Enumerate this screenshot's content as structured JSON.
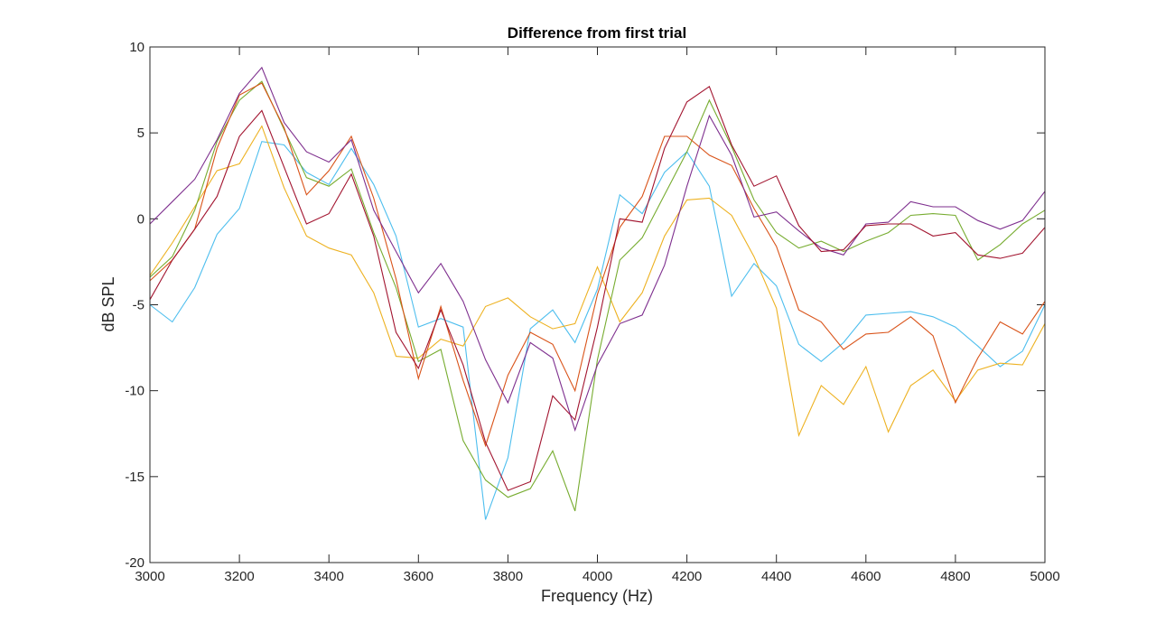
{
  "chart_data": {
    "type": "line",
    "title": "Difference from first trial",
    "xlabel": "Frequency (Hz)",
    "ylabel": "dB SPL",
    "xlim": [
      3000,
      5000
    ],
    "ylim": [
      -20,
      10
    ],
    "xticks": [
      3000,
      3200,
      3400,
      3600,
      3800,
      4000,
      4200,
      4400,
      4600,
      4800,
      5000
    ],
    "yticks": [
      -20,
      -15,
      -10,
      -5,
      0,
      5,
      10
    ],
    "grid": false,
    "legend": "none",
    "x": [
      3000,
      3050,
      3100,
      3150,
      3200,
      3250,
      3300,
      3350,
      3400,
      3450,
      3500,
      3550,
      3600,
      3650,
      3700,
      3750,
      3800,
      3850,
      3900,
      3950,
      4000,
      4050,
      4100,
      4150,
      4200,
      4250,
      4300,
      4350,
      4400,
      4450,
      4500,
      4550,
      4600,
      4650,
      4700,
      4750,
      4800,
      4850,
      4900,
      4950,
      5000
    ],
    "series": [
      {
        "color": "#4dbeee",
        "values": [
          -5.0,
          -6.0,
          -4.0,
          -0.9,
          0.6,
          4.5,
          4.3,
          2.7,
          2.0,
          4.1,
          2.0,
          -1.0,
          -6.3,
          -5.8,
          -6.3,
          -17.5,
          -13.9,
          -6.4,
          -5.3,
          -7.2,
          -4.1,
          1.4,
          0.3,
          2.7,
          3.9,
          1.9,
          -4.5,
          -2.6,
          -3.9,
          -7.3,
          -8.3,
          -7.2,
          -5.6,
          -5.5,
          -5.4,
          -5.7,
          -6.3,
          -7.4,
          -8.6,
          -7.7,
          -5.0
        ]
      },
      {
        "color": "#edb120",
        "values": [
          -3.3,
          -1.4,
          0.7,
          2.8,
          3.2,
          5.4,
          1.8,
          -1.0,
          -1.7,
          -2.1,
          -4.3,
          -8.0,
          -8.1,
          -7.0,
          -7.4,
          -5.1,
          -4.6,
          -5.7,
          -6.4,
          -6.1,
          -2.8,
          -6.0,
          -4.3,
          -1.0,
          1.1,
          1.2,
          0.2,
          -2.2,
          -5.2,
          -12.6,
          -9.7,
          -10.8,
          -8.6,
          -12.4,
          -9.7,
          -8.8,
          -10.6,
          -8.8,
          -8.4,
          -8.5,
          -6.1
        ]
      },
      {
        "color": "#77ac30",
        "values": [
          -3.4,
          -2.2,
          0.5,
          4.5,
          6.9,
          8.0,
          5.2,
          2.4,
          1.9,
          2.9,
          -0.8,
          -4.0,
          -8.3,
          -7.6,
          -12.9,
          -15.2,
          -16.2,
          -15.7,
          -13.5,
          -17.0,
          -8.2,
          -2.4,
          -1.1,
          1.4,
          3.9,
          6.9,
          4.2,
          1.1,
          -0.8,
          -1.7,
          -1.3,
          -1.9,
          -1.3,
          -0.8,
          0.2,
          0.3,
          0.2,
          -2.4,
          -1.5,
          -0.3,
          0.5
        ]
      },
      {
        "color": "#d95319",
        "values": [
          -3.6,
          -2.4,
          -0.6,
          4.1,
          7.2,
          7.9,
          5.3,
          1.4,
          2.8,
          4.8,
          1.2,
          -3.5,
          -9.3,
          -5.1,
          -9.4,
          -13.2,
          -9.1,
          -6.6,
          -7.3,
          -10.0,
          -4.4,
          -0.5,
          1.3,
          4.8,
          4.8,
          3.7,
          3.1,
          0.6,
          -1.6,
          -5.3,
          -6.0,
          -7.6,
          -6.7,
          -6.6,
          -5.7,
          -6.8,
          -10.7,
          -8.1,
          -6.0,
          -6.7,
          -4.8
        ]
      },
      {
        "color": "#7e2f8e",
        "values": [
          -0.3,
          1.0,
          2.3,
          4.6,
          7.3,
          8.8,
          5.6,
          3.9,
          3.3,
          4.6,
          0.5,
          -1.9,
          -4.3,
          -2.6,
          -4.8,
          -8.2,
          -10.7,
          -7.2,
          -8.1,
          -12.3,
          -8.5,
          -6.1,
          -5.6,
          -2.7,
          1.9,
          6.0,
          3.7,
          0.1,
          0.4,
          -0.7,
          -1.7,
          -2.1,
          -0.3,
          -0.2,
          1.0,
          0.7,
          0.7,
          -0.1,
          -0.6,
          -0.1,
          1.6
        ]
      },
      {
        "color": "#a2142f",
        "values": [
          -4.7,
          -2.4,
          -0.6,
          1.3,
          4.8,
          6.3,
          3.0,
          -0.3,
          0.3,
          2.6,
          -1.0,
          -6.6,
          -8.7,
          -5.3,
          -8.5,
          -13.0,
          -15.8,
          -15.3,
          -10.3,
          -11.7,
          -6.3,
          0.0,
          -0.2,
          4.1,
          6.8,
          7.7,
          4.3,
          1.9,
          2.5,
          -0.4,
          -1.9,
          -1.8,
          -0.4,
          -0.3,
          -0.3,
          -1.0,
          -0.8,
          -2.1,
          -2.3,
          -2.0,
          -0.5
        ]
      }
    ]
  }
}
